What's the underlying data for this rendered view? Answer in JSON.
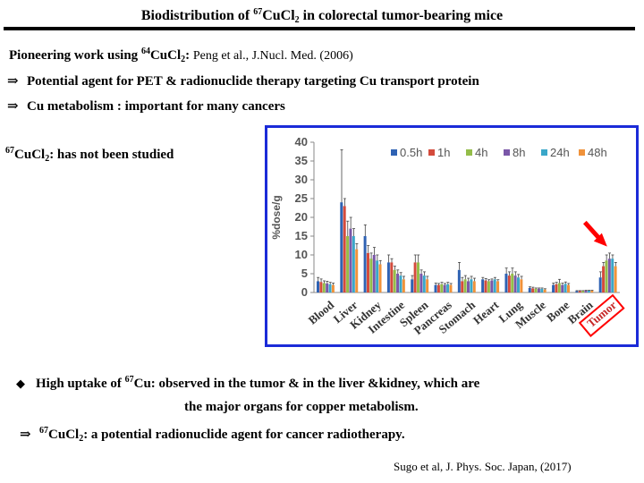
{
  "slide": {
    "title_prefix": "Biodistribution of ",
    "title_sup": "67",
    "title_mid": "Cu",
    "title_el": "Cl",
    "title_sub": "2",
    "title_suffix": " in colorectal tumor-bearing mice",
    "pioneer": {
      "prefix": "Pioneering work using ",
      "sup": "64",
      "cu": "Cu",
      "cl": "Cl",
      "sub": "2",
      "colon": ":",
      "ref": "Peng et al., J.Nucl. Med. (2006)"
    },
    "arrow_symbol": "⇒",
    "bullet1": "Potential agent for PET & radionuclide therapy targeting Cu transport protein",
    "bullet2": "Cu metabolism : important for many cancers",
    "not_studied": {
      "sup": "67",
      "cu": "Cu",
      "cl": "Cl",
      "sub": "2",
      "text": ": has not been studied"
    },
    "diamond_symbol": "◆",
    "finding": {
      "prefix": "High uptake of ",
      "sup": "67",
      "text": "Cu: observed in the tumor & in the liver &kidney, which are"
    },
    "finding_line2": "the major organs for copper metabolism.",
    "conclusion": {
      "sup": "67",
      "cu": "Cu",
      "cl": "Cl",
      "sub": "2",
      "text": ": a potential radionuclide agent for cancer radiotherapy."
    },
    "citation": "Sugo et al, J. Phys. Soc. Japan, (2017)"
  },
  "colors": {
    "frame": "#1b2bd8",
    "arrow": "#ff0000",
    "tumor_box": "#ff0000"
  },
  "chart_data": {
    "type": "bar",
    "ylabel": "%dose/g",
    "ylim": [
      0,
      40
    ],
    "yticks": [
      0,
      5,
      10,
      15,
      20,
      25,
      30,
      35,
      40
    ],
    "categories": [
      "Blood",
      "Liver",
      "Kidney",
      "Intestine",
      "Spleen",
      "Pancreas",
      "Stomach",
      "Heart",
      "Lung",
      "Muscle",
      "Bone",
      "Brain",
      "Tumor"
    ],
    "highlighted_category": "Tumor",
    "legend_position": "top-right",
    "series": [
      {
        "name": "0.5h",
        "color": "#2e62b3",
        "values": [
          3.0,
          24.0,
          15.0,
          8.0,
          3.5,
          2.0,
          6.0,
          3.5,
          5.0,
          1.2,
          2.0,
          0.4,
          4.0
        ]
      },
      {
        "name": "1h",
        "color": "#d44b3c",
        "values": [
          2.8,
          23.0,
          10.5,
          8.0,
          8.0,
          2.0,
          3.0,
          3.2,
          4.5,
          1.1,
          2.2,
          0.4,
          7.0
        ]
      },
      {
        "name": "4h",
        "color": "#94bd49",
        "values": [
          2.5,
          15.0,
          9.0,
          6.0,
          8.0,
          2.2,
          3.5,
          3.0,
          5.0,
          1.0,
          2.5,
          0.4,
          8.5
        ]
      },
      {
        "name": "8h",
        "color": "#7a57a8",
        "values": [
          2.4,
          17.0,
          10.0,
          5.0,
          5.0,
          2.0,
          3.0,
          3.2,
          4.5,
          1.0,
          2.0,
          0.5,
          9.0
        ]
      },
      {
        "name": "24h",
        "color": "#3aa7c9",
        "values": [
          2.2,
          15.0,
          8.5,
          4.5,
          4.5,
          2.2,
          3.5,
          3.5,
          4.0,
          1.0,
          2.3,
          0.5,
          9.0
        ]
      },
      {
        "name": "48h",
        "color": "#f0923a",
        "values": [
          2.0,
          11.5,
          7.5,
          3.5,
          3.5,
          2.0,
          3.0,
          3.0,
          3.5,
          0.8,
          2.0,
          0.5,
          7.0
        ]
      }
    ],
    "errors": [
      [
        1.0,
        14.0,
        3.0,
        2.0,
        1.0,
        0.5,
        2.0,
        0.5,
        1.5,
        0.3,
        0.5,
        0.1,
        1.5
      ],
      [
        0.8,
        2.0,
        2.0,
        1.0,
        2.0,
        0.4,
        1.0,
        0.5,
        1.0,
        0.3,
        0.5,
        0.1,
        1.0
      ],
      [
        0.6,
        4.0,
        1.5,
        1.0,
        2.0,
        0.5,
        1.0,
        0.4,
        1.5,
        0.2,
        1.0,
        0.1,
        1.5
      ],
      [
        0.6,
        3.0,
        2.0,
        1.0,
        1.0,
        0.4,
        0.8,
        0.4,
        1.0,
        0.2,
        0.5,
        0.1,
        1.5
      ],
      [
        0.5,
        2.0,
        1.5,
        0.8,
        1.0,
        0.5,
        0.8,
        0.5,
        0.8,
        0.2,
        0.5,
        0.1,
        1.0
      ],
      [
        0.5,
        1.5,
        1.0,
        0.8,
        0.8,
        0.4,
        0.8,
        0.4,
        0.8,
        0.2,
        0.4,
        0.1,
        1.0
      ]
    ]
  }
}
